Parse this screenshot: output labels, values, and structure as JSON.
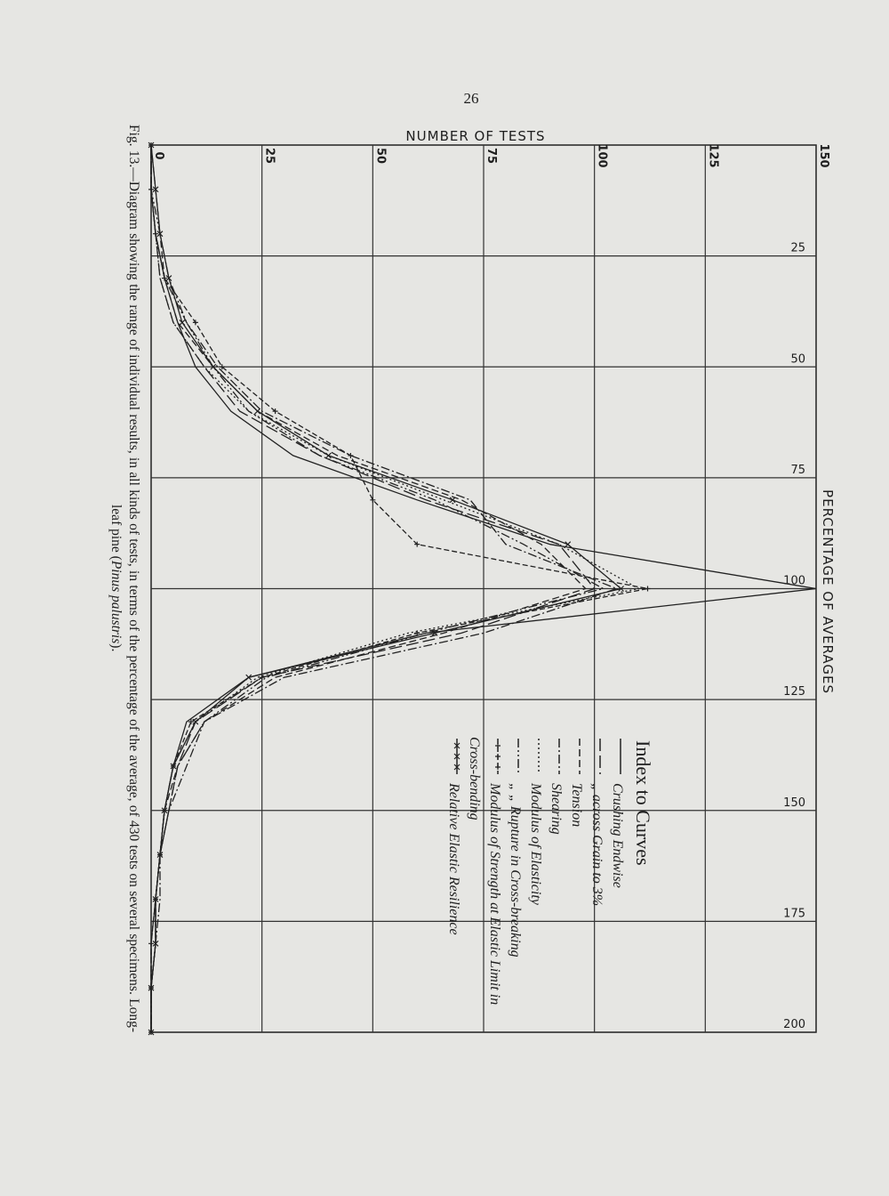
{
  "page_number": "26",
  "caption": [
    "Fig. 13.—Diagram showing the range of individual results, in all kinds of tests, in terms of the percentage of the average, of 430 tests on several specimens. Long-leaf pine (",
    "Pinus palustris",
    ")."
  ],
  "chart_data": {
    "type": "line",
    "y_label": "NUMBER OF TESTS",
    "x_label": "PERCENTAGE OF AVERAGES",
    "legend_title": "Index to Curves",
    "x": [
      0,
      10,
      20,
      30,
      40,
      50,
      60,
      70,
      80,
      90,
      100,
      110,
      120,
      130,
      140,
      150,
      160,
      170,
      180,
      190,
      200
    ],
    "xlim": [
      0,
      200
    ],
    "xticks": [
      25,
      50,
      75,
      100,
      125,
      150,
      175,
      200
    ],
    "ylim": [
      0,
      150
    ],
    "yticks": [
      0,
      25,
      50,
      75,
      100,
      125,
      150
    ],
    "grid": true,
    "series": [
      {
        "name": "Crushing Endwise",
        "color": "#222222",
        "dash": "none",
        "marker": "none",
        "values": [
          0,
          0,
          1,
          3,
          6,
          10,
          18,
          32,
          60,
          90,
          150,
          62,
          22,
          8,
          5,
          3,
          2,
          1,
          1,
          0,
          0
        ]
      },
      {
        "name": "„ across Grain to 3%",
        "color": "#222222",
        "dash": "14 5",
        "marker": "none",
        "values": [
          0,
          0,
          1,
          2,
          5,
          12,
          20,
          38,
          62,
          92,
          100,
          70,
          25,
          10,
          6,
          4,
          2,
          1,
          0,
          0,
          0
        ]
      },
      {
        "name": "Tension",
        "color": "#222222",
        "dash": "8 4",
        "marker": "none",
        "values": [
          0,
          1,
          2,
          3,
          6,
          14,
          24,
          42,
          70,
          88,
          98,
          66,
          28,
          12,
          6,
          3,
          2,
          1,
          1,
          0,
          0
        ]
      },
      {
        "name": "Shearing",
        "color": "#222222",
        "dash": "10 3 2 3",
        "marker": "none",
        "values": [
          0,
          0,
          1,
          3,
          8,
          15,
          25,
          45,
          72,
          80,
          105,
          75,
          30,
          12,
          8,
          4,
          2,
          2,
          1,
          0,
          0
        ]
      },
      {
        "name": "Modulus of Elasticity",
        "color": "#222222",
        "dash": "2 3",
        "marker": "none",
        "values": [
          0,
          0,
          1,
          2,
          5,
          12,
          22,
          40,
          66,
          92,
          110,
          58,
          24,
          10,
          5,
          3,
          2,
          1,
          0,
          0,
          0
        ]
      },
      {
        "name": "„ „ Rupture in Cross-breaking",
        "color": "#222222",
        "dash": "10 3 2 3 2 3",
        "marker": "none",
        "values": [
          0,
          0,
          2,
          4,
          8,
          14,
          22,
          38,
          64,
          84,
          102,
          62,
          26,
          12,
          6,
          4,
          2,
          1,
          1,
          0,
          0
        ]
      },
      {
        "name": "Modulus of Strength at Elastic Limit in Cross-bending",
        "color": "#222222",
        "dash": "6 3",
        "marker": "plus",
        "values": [
          0,
          0,
          1,
          3,
          10,
          16,
          28,
          45,
          50,
          60,
          112,
          60,
          25,
          9,
          5,
          3,
          2,
          1,
          0,
          0,
          0
        ]
      },
      {
        "name": "Relative Elastic Resilience",
        "color": "#222222",
        "dash": "none",
        "marker": "cross",
        "values": [
          0,
          1,
          2,
          4,
          7,
          14,
          24,
          40,
          68,
          94,
          106,
          64,
          22,
          10,
          5,
          3,
          2,
          1,
          1,
          0,
          0
        ]
      }
    ]
  }
}
